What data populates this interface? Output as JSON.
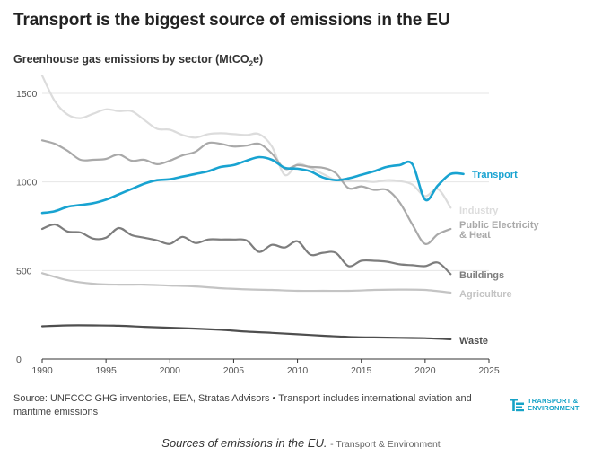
{
  "header": {
    "title": "Transport is the biggest source of emissions in the EU",
    "subtitle_main": "Greenhouse gas emissions by sector (MtCO",
    "subtitle_sub": "2",
    "subtitle_end": "e)"
  },
  "footer": {
    "source": "Source: UNFCCC GHG inventories, EEA, Stratas Advisors • Transport includes international aviation and maritime emissions",
    "logo_line1": "TRANSPORT &",
    "logo_line2": "ENVIRONMENT",
    "caption": "Sources of emissions in the EU.",
    "caption_credit": "- Transport & Environment"
  },
  "colors": {
    "transport": "#18a3d1",
    "industry": "#dcdcdc",
    "electricity": "#a9a9a9",
    "buildings": "#7d7d7d",
    "agriculture": "#c4c4c4",
    "waste": "#4e4e4e",
    "grid": "#e6e6e6",
    "axis": "#333333"
  },
  "chart_data": {
    "type": "line",
    "title": "Transport is the biggest source of emissions in the EU",
    "subtitle": "Greenhouse gas emissions by sector (MtCO2e)",
    "xlabel": "",
    "ylabel": "",
    "xlim": [
      1990,
      2025
    ],
    "ylim": [
      0,
      1500
    ],
    "x_ticks": [
      "1990",
      "1995",
      "2000",
      "2005",
      "2010",
      "2015",
      "2020",
      "2025"
    ],
    "y_ticks": [
      "0",
      "500",
      "1000",
      "1500"
    ],
    "grid": true,
    "series": [
      {
        "name": "Industry",
        "label": "Industry",
        "color_key": "industry",
        "years": [
          1990,
          1991,
          1992,
          1993,
          1994,
          1995,
          1996,
          1997,
          1998,
          1999,
          2000,
          2001,
          2002,
          2003,
          2004,
          2005,
          2006,
          2007,
          2008,
          2009,
          2010,
          2011,
          2012,
          2013,
          2014,
          2015,
          2016,
          2017,
          2018,
          2019,
          2020,
          2021,
          2022
        ],
        "values": [
          1600,
          1455,
          1380,
          1360,
          1385,
          1410,
          1400,
          1400,
          1350,
          1300,
          1295,
          1265,
          1250,
          1270,
          1275,
          1270,
          1265,
          1270,
          1200,
          1040,
          1100,
          1080,
          1045,
          1010,
          1005,
          1005,
          1000,
          1010,
          1005,
          985,
          920,
          960,
          855
        ]
      },
      {
        "name": "Public Electricity & Heat",
        "label": "Public Electricity\n& Heat",
        "color_key": "electricity",
        "years": [
          1990,
          1991,
          1992,
          1993,
          1994,
          1995,
          1996,
          1997,
          1998,
          1999,
          2000,
          2001,
          2002,
          2003,
          2004,
          2005,
          2006,
          2007,
          2008,
          2009,
          2010,
          2011,
          2012,
          2013,
          2014,
          2015,
          2016,
          2017,
          2018,
          2019,
          2020,
          2021,
          2022
        ],
        "values": [
          1235,
          1215,
          1175,
          1125,
          1125,
          1130,
          1155,
          1120,
          1125,
          1100,
          1120,
          1150,
          1170,
          1220,
          1215,
          1200,
          1205,
          1215,
          1160,
          1075,
          1095,
          1085,
          1080,
          1050,
          965,
          975,
          955,
          955,
          885,
          760,
          650,
          705,
          735
        ]
      },
      {
        "name": "Transport",
        "label": "Transport",
        "color_key": "transport",
        "years": [
          1990,
          1991,
          1992,
          1993,
          1994,
          1995,
          1996,
          1997,
          1998,
          1999,
          2000,
          2001,
          2002,
          2003,
          2004,
          2005,
          2006,
          2007,
          2008,
          2009,
          2010,
          2011,
          2012,
          2013,
          2014,
          2015,
          2016,
          2017,
          2018,
          2019,
          2020,
          2021,
          2022,
          2023
        ],
        "values": [
          825,
          835,
          860,
          870,
          880,
          900,
          930,
          960,
          990,
          1010,
          1015,
          1030,
          1045,
          1060,
          1085,
          1095,
          1120,
          1140,
          1125,
          1080,
          1075,
          1060,
          1025,
          1010,
          1020,
          1040,
          1060,
          1085,
          1095,
          1100,
          900,
          980,
          1045,
          1045
        ]
      },
      {
        "name": "Buildings",
        "label": "Buildings",
        "color_key": "buildings",
        "years": [
          1990,
          1991,
          1992,
          1993,
          1994,
          1995,
          1996,
          1997,
          1998,
          1999,
          2000,
          2001,
          2002,
          2003,
          2004,
          2005,
          2006,
          2007,
          2008,
          2009,
          2010,
          2011,
          2012,
          2013,
          2014,
          2015,
          2016,
          2017,
          2018,
          2019,
          2020,
          2021,
          2022
        ],
        "values": [
          735,
          760,
          720,
          715,
          680,
          685,
          740,
          700,
          685,
          670,
          650,
          690,
          655,
          675,
          675,
          675,
          670,
          605,
          645,
          630,
          665,
          590,
          600,
          600,
          525,
          555,
          555,
          550,
          535,
          530,
          525,
          545,
          480
        ]
      },
      {
        "name": "Agriculture",
        "label": "Agriculture",
        "color_key": "agriculture",
        "years": [
          1990,
          1992,
          1994,
          1996,
          1998,
          2000,
          2002,
          2004,
          2006,
          2008,
          2010,
          2012,
          2014,
          2016,
          2018,
          2020,
          2022
        ],
        "values": [
          485,
          445,
          425,
          420,
          420,
          415,
          410,
          400,
          393,
          390,
          385,
          385,
          385,
          390,
          392,
          390,
          375
        ]
      },
      {
        "name": "Waste",
        "label": "Waste",
        "color_key": "waste",
        "years": [
          1990,
          1992,
          1994,
          1996,
          1998,
          2000,
          2002,
          2004,
          2006,
          2008,
          2010,
          2012,
          2014,
          2016,
          2018,
          2020,
          2022
        ],
        "values": [
          185,
          190,
          190,
          188,
          182,
          177,
          172,
          165,
          155,
          148,
          140,
          132,
          125,
          122,
          120,
          118,
          112
        ]
      }
    ]
  }
}
